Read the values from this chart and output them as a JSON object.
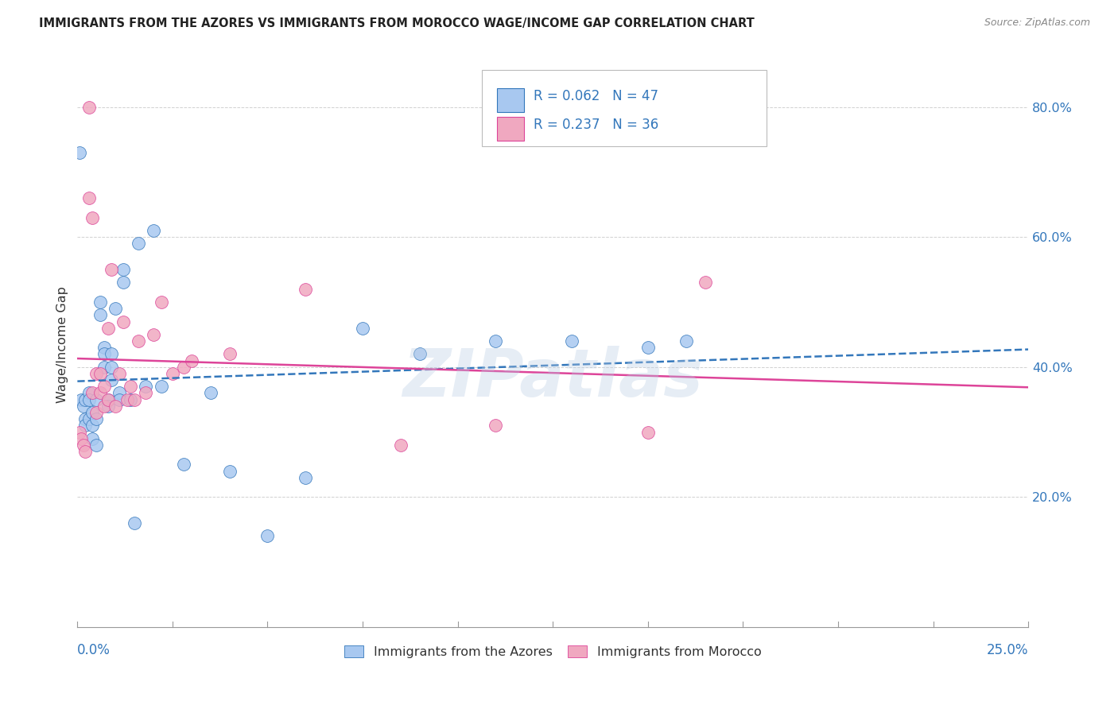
{
  "title": "IMMIGRANTS FROM THE AZORES VS IMMIGRANTS FROM MOROCCO WAGE/INCOME GAP CORRELATION CHART",
  "source": "Source: ZipAtlas.com",
  "ylabel": "Wage/Income Gap",
  "watermark": "ZIPatlas",
  "legend_r1": "0.062",
  "legend_n1": "47",
  "legend_r2": "0.237",
  "legend_n2": "36",
  "azores_color": "#a8c8f0",
  "morocco_color": "#f0a8c0",
  "azores_trend_color": "#3377bb",
  "morocco_trend_color": "#dd4499",
  "azores_x": [
    0.0005,
    0.001,
    0.0015,
    0.002,
    0.002,
    0.002,
    0.003,
    0.003,
    0.003,
    0.004,
    0.004,
    0.004,
    0.005,
    0.005,
    0.005,
    0.006,
    0.006,
    0.007,
    0.007,
    0.007,
    0.008,
    0.008,
    0.009,
    0.009,
    0.009,
    0.01,
    0.011,
    0.011,
    0.012,
    0.012,
    0.014,
    0.015,
    0.016,
    0.018,
    0.02,
    0.022,
    0.028,
    0.035,
    0.04,
    0.05,
    0.06,
    0.075,
    0.09,
    0.11,
    0.13,
    0.15,
    0.16
  ],
  "azores_y": [
    0.73,
    0.35,
    0.34,
    0.35,
    0.32,
    0.31,
    0.36,
    0.35,
    0.32,
    0.33,
    0.31,
    0.29,
    0.35,
    0.32,
    0.28,
    0.5,
    0.48,
    0.43,
    0.42,
    0.4,
    0.35,
    0.34,
    0.42,
    0.4,
    0.38,
    0.49,
    0.36,
    0.35,
    0.55,
    0.53,
    0.35,
    0.16,
    0.59,
    0.37,
    0.61,
    0.37,
    0.25,
    0.36,
    0.24,
    0.14,
    0.23,
    0.46,
    0.42,
    0.44,
    0.44,
    0.43,
    0.44
  ],
  "morocco_x": [
    0.0005,
    0.001,
    0.0015,
    0.002,
    0.003,
    0.003,
    0.004,
    0.004,
    0.005,
    0.005,
    0.006,
    0.006,
    0.007,
    0.007,
    0.008,
    0.008,
    0.009,
    0.01,
    0.011,
    0.012,
    0.013,
    0.014,
    0.015,
    0.016,
    0.018,
    0.02,
    0.022,
    0.025,
    0.028,
    0.03,
    0.04,
    0.06,
    0.085,
    0.11,
    0.15,
    0.165
  ],
  "morocco_y": [
    0.3,
    0.29,
    0.28,
    0.27,
    0.8,
    0.66,
    0.63,
    0.36,
    0.39,
    0.33,
    0.39,
    0.36,
    0.37,
    0.34,
    0.46,
    0.35,
    0.55,
    0.34,
    0.39,
    0.47,
    0.35,
    0.37,
    0.35,
    0.44,
    0.36,
    0.45,
    0.5,
    0.39,
    0.4,
    0.41,
    0.42,
    0.52,
    0.28,
    0.31,
    0.3,
    0.53
  ],
  "xmin": 0.0,
  "xmax": 0.25,
  "ymin": 0.0,
  "ymax": 0.87,
  "yticks": [
    0.2,
    0.4,
    0.6,
    0.8
  ],
  "ytick_labels": [
    "20.0%",
    "40.0%",
    "60.0%",
    "80.0%"
  ],
  "grid_color": "#cccccc",
  "background_color": "#ffffff",
  "title_color": "#222222",
  "axis_label_color": "#3377bb",
  "text_color": "#333333"
}
